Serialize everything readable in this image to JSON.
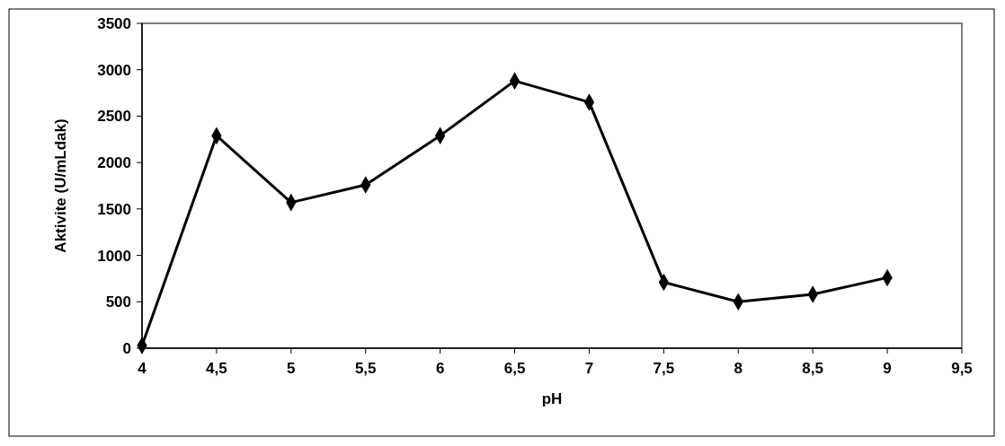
{
  "chart_data": {
    "type": "line",
    "xlabel": "pH",
    "ylabel": "Aktivite (U/mLdak)",
    "x": [
      4,
      4.5,
      5,
      5.5,
      6,
      6.5,
      7,
      7.5,
      8,
      8.5,
      9
    ],
    "series": [
      {
        "color": "#000000",
        "values": [
          30,
          2290,
          1570,
          1760,
          2290,
          2880,
          2650,
          710,
          500,
          580,
          760
        ]
      }
    ],
    "xlim": [
      4,
      9.5
    ],
    "xticks": [
      4,
      {
        "value": 4.5,
        "label": "4,5"
      },
      5,
      {
        "value": 5.5,
        "label": "5,5"
      },
      6,
      {
        "value": 6.5,
        "label": "6,5"
      },
      7,
      {
        "value": 7.5,
        "label": "7,5"
      },
      8,
      {
        "value": 8.5,
        "label": "8,5"
      },
      9,
      {
        "value": 9.5,
        "label": "9,5"
      }
    ],
    "ylim": [
      0,
      3500
    ],
    "yticks": [
      0,
      500,
      1000,
      1500,
      2000,
      2500,
      3000,
      3500
    ],
    "marker": "diamond",
    "line_style": "solid",
    "grid": false
  }
}
